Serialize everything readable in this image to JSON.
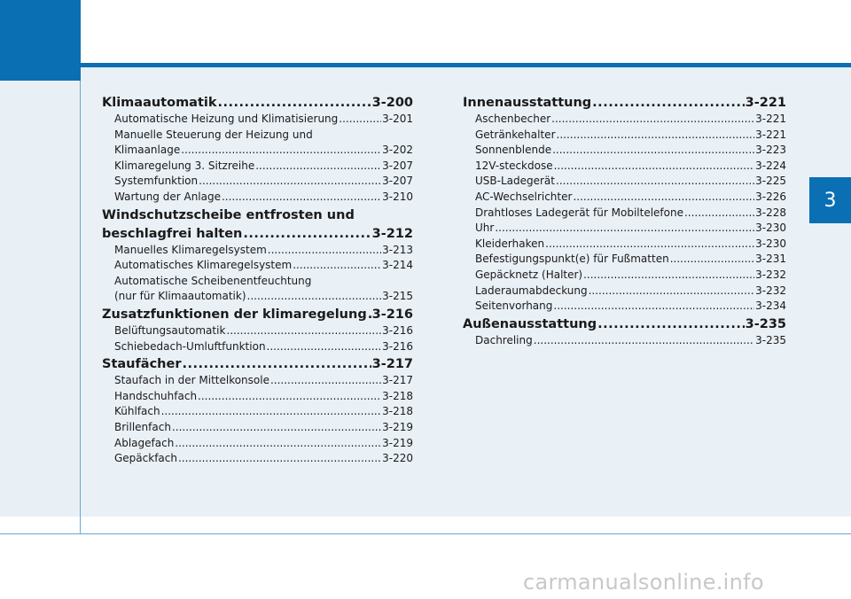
{
  "chapter_number": "3",
  "left_column": [
    {
      "kind": "sec",
      "label": "Klimaautomatik",
      "page": "3-200"
    },
    {
      "kind": "sub",
      "label": "Automatische Heizung und Klimatisierung",
      "page": "3-201"
    },
    {
      "kind": "cont",
      "label": "Manuelle Steuerung der Heizung und"
    },
    {
      "kind": "sub",
      "label": "Klimaanlage",
      "page": "3-202"
    },
    {
      "kind": "sub",
      "label": "Klimaregelung 3. Sitzreihe",
      "page": "3-207"
    },
    {
      "kind": "sub",
      "label": "Systemfunktion",
      "page": "3-207"
    },
    {
      "kind": "sub",
      "label": "Wartung der Anlage",
      "page": "3-210"
    },
    {
      "kind": "sechead",
      "label": "Windschutzscheibe entfrosten und"
    },
    {
      "kind": "sec",
      "label": "beschlagfrei halten",
      "page": "3-212"
    },
    {
      "kind": "sub",
      "label": "Manuelles Klimaregelsystem",
      "page": "3-213"
    },
    {
      "kind": "sub",
      "label": "Automatisches Klimaregelsystem",
      "page": "3-214"
    },
    {
      "kind": "cont",
      "label": "Automatische Scheibenentfeuchtung"
    },
    {
      "kind": "sub",
      "label": "(nur für Klimaautomatik)",
      "page": "3-215"
    },
    {
      "kind": "sec",
      "label": "Zusatzfunktionen der klimaregelung",
      "page": "3-216"
    },
    {
      "kind": "sub",
      "label": "Belüftungsautomatik",
      "page": "3-216"
    },
    {
      "kind": "sub",
      "label": "Schiebedach-Umluftfunktion",
      "page": "3-216"
    },
    {
      "kind": "sec",
      "label": "Staufächer",
      "page": "3-217"
    },
    {
      "kind": "sub",
      "label": "Staufach in der Mittelkonsole",
      "page": "3-217"
    },
    {
      "kind": "sub",
      "label": "Handschuhfach",
      "page": "3-218"
    },
    {
      "kind": "sub",
      "label": "Kühlfach",
      "page": "3-218"
    },
    {
      "kind": "sub",
      "label": "Brillenfach",
      "page": "3-219"
    },
    {
      "kind": "sub",
      "label": "Ablagefach",
      "page": "3-219"
    },
    {
      "kind": "sub",
      "label": "Gepäckfach",
      "page": "3-220"
    }
  ],
  "right_column": [
    {
      "kind": "sec",
      "label": "Innenausstattung",
      "page": "3-221"
    },
    {
      "kind": "sub",
      "label": "Aschenbecher",
      "page": "3-221"
    },
    {
      "kind": "sub",
      "label": "Getränkehalter",
      "page": "3-221"
    },
    {
      "kind": "sub",
      "label": "Sonnenblende",
      "page": "3-223"
    },
    {
      "kind": "sub",
      "label": "12V-steckdose",
      "page": "3-224"
    },
    {
      "kind": "sub",
      "label": "USB-Ladegerät",
      "page": "3-225"
    },
    {
      "kind": "sub",
      "label": "AC-Wechselrichter",
      "page": "3-226"
    },
    {
      "kind": "sub",
      "label": "Drahtloses Ladegerät für Mobiltelefone",
      "page": "3-228"
    },
    {
      "kind": "sub",
      "label": "Uhr",
      "page": "3-230"
    },
    {
      "kind": "sub",
      "label": "Kleiderhaken",
      "page": "3-230"
    },
    {
      "kind": "sub",
      "label": "Befestigungspunkt(e) für Fußmatten",
      "page": "3-231"
    },
    {
      "kind": "sub",
      "label": "Gepäcknetz (Halter)",
      "page": "3-232"
    },
    {
      "kind": "sub",
      "label": "Laderaumabdeckung",
      "page": "3-232"
    },
    {
      "kind": "sub",
      "label": "Seitenvorhang",
      "page": "3-234"
    },
    {
      "kind": "sec",
      "label": "Außenausstattung",
      "page": "3-235"
    },
    {
      "kind": "sub",
      "label": "Dachreling",
      "page": "3-235"
    }
  ],
  "watermark": "carmanualsonline.info",
  "colors": {
    "accent": "#0a6fb3",
    "panel": "#e9f0f6"
  }
}
